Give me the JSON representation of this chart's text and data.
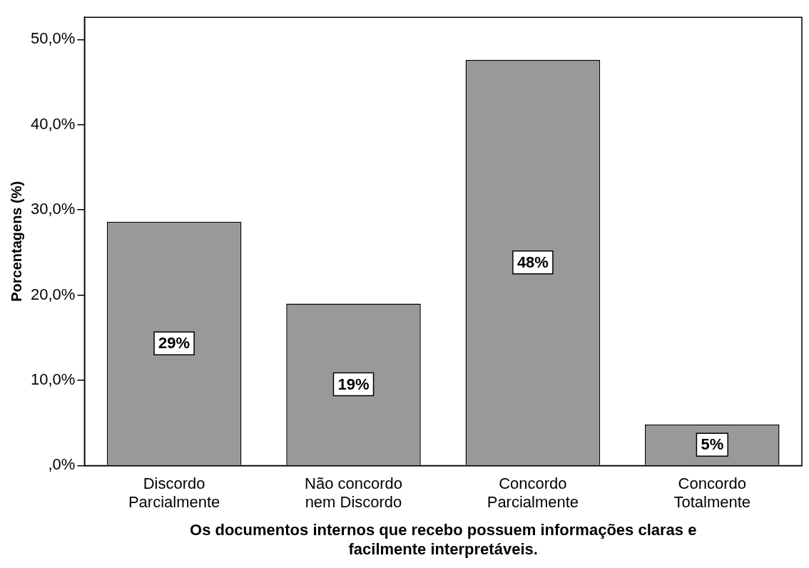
{
  "chart_data": {
    "type": "bar",
    "xlabel": "Os documentos internos que recebo possuem informações claras e facilmente interpretáveis.",
    "ylabel": "Porcentagens (%)",
    "categories": [
      "Discordo Parcialmente",
      "Não concordo nem Discordo",
      "Concordo Parcialmente",
      "Concordo Totalmente"
    ],
    "values": [
      28.6,
      19.0,
      47.6,
      4.8
    ],
    "value_labels": [
      "29%",
      "19%",
      "48%",
      "5%"
    ],
    "color": "#999999",
    "ylim": [
      0,
      52.6
    ],
    "yticks": [
      {
        "value": 0,
        "label": ",0%"
      },
      {
        "value": 10,
        "label": "10,0%"
      },
      {
        "value": 20,
        "label": "20,0%"
      },
      {
        "value": 30,
        "label": "30,0%"
      },
      {
        "value": 40,
        "label": "40,0%"
      },
      {
        "value": 50,
        "label": "50,0%"
      }
    ],
    "grid": false,
    "legend": false
  }
}
